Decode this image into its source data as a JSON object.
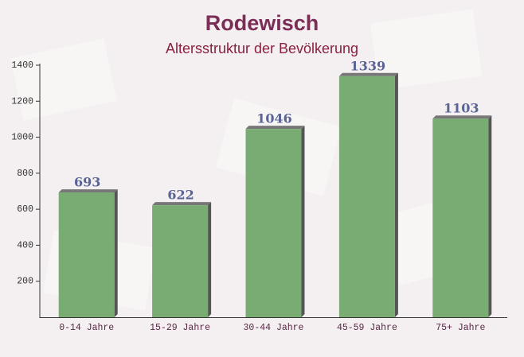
{
  "chart_data": {
    "type": "bar",
    "title": "Rodewisch",
    "subtitle": "Altersstruktur der Bevölkerung",
    "categories": [
      "0-14 Jahre",
      "15-29 Jahre",
      "30-44 Jahre",
      "45-59 Jahre",
      "75+ Jahre"
    ],
    "values": [
      693,
      622,
      1046,
      1339,
      1103
    ],
    "color": "#6aa464",
    "ylim": [
      0,
      1400
    ],
    "yticks": [
      200,
      400,
      600,
      800,
      1000,
      1200,
      1400
    ],
    "grid": false
  }
}
